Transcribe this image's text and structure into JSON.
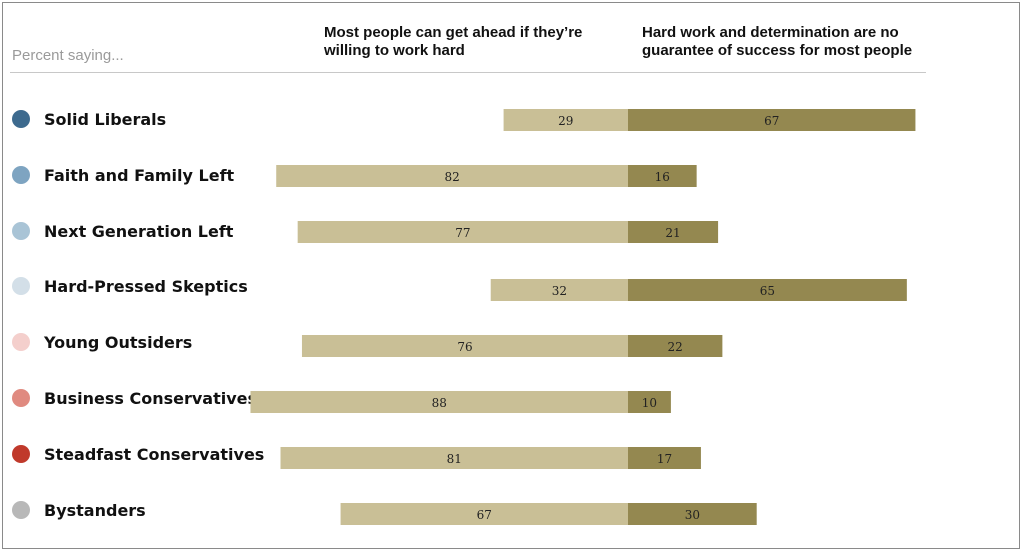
{
  "chart_data": {
    "type": "bar",
    "subtitle": "Percent saying...",
    "series": [
      {
        "name": "Most people can get ahead if they’re willing to work hard",
        "color": "#c9bf96",
        "values": [
          29,
          82,
          77,
          32,
          76,
          88,
          81,
          67
        ]
      },
      {
        "name": "Hard work and determination are no guarantee of success for most people",
        "color": "#948850",
        "values": [
          67,
          16,
          21,
          65,
          22,
          10,
          17,
          30
        ]
      }
    ],
    "categories": [
      {
        "label": "Solid Liberals",
        "color": "#3d6a8e"
      },
      {
        "label": "Faith and Family Left",
        "color": "#7ea4c1"
      },
      {
        "label": "Next Generation Left",
        "color": "#a9c4d6"
      },
      {
        "label": "Hard-Pressed Skeptics",
        "color": "#d3dfe8"
      },
      {
        "label": "Young Outsiders",
        "color": "#f4cfcc"
      },
      {
        "label": "Business Conservatives",
        "color": "#e08a80"
      },
      {
        "label": "Steadfast Conservatives",
        "color": "#c0392b"
      },
      {
        "label": "Bystanders",
        "color": "#b8b8b8"
      }
    ]
  }
}
